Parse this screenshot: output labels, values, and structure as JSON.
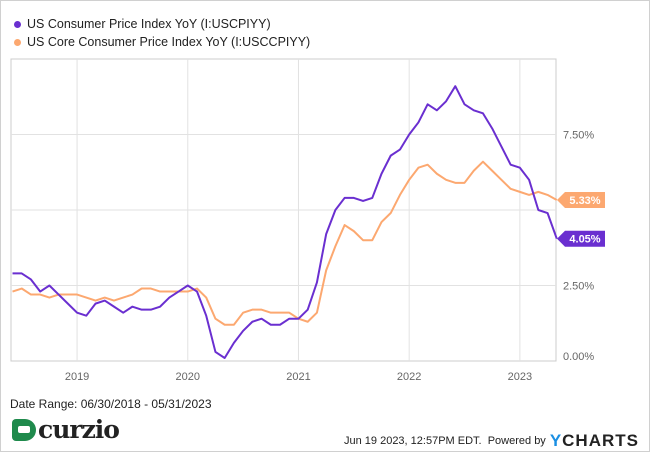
{
  "chart_data": {
    "type": "line",
    "x_start": "2018-06",
    "x_frequency": "monthly",
    "date_range_label": "Date Range: 06/30/2018 - 05/31/2023",
    "x_ticks": [
      "2019",
      "2020",
      "2021",
      "2022",
      "2023"
    ],
    "y_ticks": [
      "0.00%",
      "2.50%",
      "7.50%"
    ],
    "ylim": [
      0,
      10
    ],
    "y_axis_side": "right",
    "grid": true,
    "legend_position": "top-left",
    "series": [
      {
        "name": "US Consumer Price Index YoY (I:USCPIYY)",
        "color": "#6a2fd0",
        "last_label": "4.05%",
        "values": [
          2.9,
          2.9,
          2.7,
          2.3,
          2.5,
          2.2,
          1.9,
          1.6,
          1.5,
          1.9,
          2.0,
          1.8,
          1.6,
          1.8,
          1.7,
          1.7,
          1.8,
          2.1,
          2.3,
          2.5,
          2.3,
          1.5,
          0.3,
          0.1,
          0.6,
          1.0,
          1.3,
          1.4,
          1.2,
          1.2,
          1.4,
          1.4,
          1.7,
          2.6,
          4.2,
          5.0,
          5.4,
          5.4,
          5.3,
          5.4,
          6.2,
          6.8,
          7.0,
          7.5,
          7.9,
          8.5,
          8.3,
          8.6,
          9.1,
          8.5,
          8.3,
          8.2,
          7.7,
          7.1,
          6.5,
          6.4,
          6.0,
          5.0,
          4.9,
          4.05
        ]
      },
      {
        "name": "US Core Consumer Price Index YoY (I:USCCPIYY)",
        "color": "#fca870",
        "last_label": "5.33%",
        "values": [
          2.3,
          2.4,
          2.2,
          2.2,
          2.1,
          2.2,
          2.2,
          2.2,
          2.1,
          2.0,
          2.1,
          2.0,
          2.1,
          2.2,
          2.4,
          2.4,
          2.3,
          2.3,
          2.3,
          2.3,
          2.4,
          2.1,
          1.4,
          1.2,
          1.2,
          1.6,
          1.7,
          1.7,
          1.6,
          1.6,
          1.6,
          1.4,
          1.3,
          1.6,
          3.0,
          3.8,
          4.5,
          4.3,
          4.0,
          4.0,
          4.6,
          4.9,
          5.5,
          6.0,
          6.4,
          6.5,
          6.2,
          6.0,
          5.9,
          5.9,
          6.3,
          6.6,
          6.3,
          6.0,
          5.7,
          5.6,
          5.5,
          5.6,
          5.5,
          5.33
        ]
      }
    ]
  },
  "footer": {
    "logo_text": "curzio",
    "timestamp": "Jun 19 2023, 12:57PM EDT.",
    "powered_by": "Powered by",
    "brand_y": "Y",
    "brand_rest": "CHARTS"
  }
}
